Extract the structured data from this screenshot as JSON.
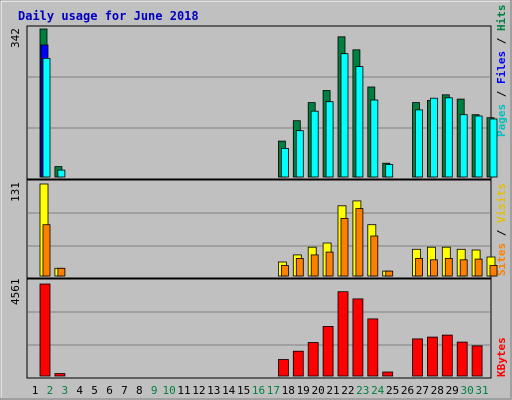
{
  "chart_data": {
    "type": "bar",
    "title": "Daily usage for June 2018",
    "days": [
      "1",
      "2",
      "3",
      "4",
      "5",
      "6",
      "7",
      "8",
      "9",
      "10",
      "11",
      "12",
      "13",
      "14",
      "15",
      "16",
      "17",
      "18",
      "19",
      "20",
      "21",
      "22",
      "23",
      "24",
      "25",
      "26",
      "27",
      "28",
      "29",
      "30",
      "31"
    ],
    "weekend_days": [
      "2",
      "3",
      "9",
      "10",
      "16",
      "17",
      "23",
      "24",
      "30",
      "31"
    ],
    "panels": [
      {
        "id": "hits",
        "ylabel_parts": [
          "Pages",
          "Files",
          "Hits"
        ],
        "max_label": "342",
        "ymax": 342,
        "series": [
          {
            "name": "Hits",
            "color": "#008040",
            "values": [
              342,
              24,
              0,
              0,
              0,
              0,
              0,
              0,
              0,
              0,
              0,
              0,
              0,
              0,
              0,
              0,
              83,
              130,
              172,
              200,
              324,
              294,
              208,
              32,
              0,
              172,
              177,
              190,
              180,
              144,
              137
            ]
          },
          {
            "name": "Files",
            "color": "#0000ff",
            "values": [
              305,
              0,
              0,
              0,
              0,
              0,
              0,
              0,
              0,
              0,
              0,
              0,
              0,
              0,
              0,
              0,
              0,
              0,
              0,
              0,
              0,
              0,
              0,
              0,
              0,
              0,
              0,
              0,
              0,
              0,
              0
            ]
          },
          {
            "name": "Pages",
            "color": "#00ffff",
            "values": [
              274,
              16,
              0,
              0,
              0,
              0,
              0,
              0,
              0,
              0,
              0,
              0,
              0,
              0,
              0,
              0,
              66,
              107,
              152,
              174,
              285,
              255,
              178,
              29,
              0,
              155,
              182,
              183,
              144,
              141,
              134
            ]
          }
        ]
      },
      {
        "id": "visits",
        "ylabel_parts": [
          "Sites",
          "Visits"
        ],
        "max_label": "131",
        "ymax": 131,
        "series": [
          {
            "name": "Visits",
            "color": "#ffff00",
            "values": [
              131,
              11,
              0,
              0,
              0,
              0,
              0,
              0,
              0,
              0,
              0,
              0,
              0,
              0,
              0,
              0,
              20,
              30,
              41,
              47,
              100,
              107,
              73,
              7,
              0,
              38,
              41,
              41,
              38,
              37,
              27
            ]
          },
          {
            "name": "Sites",
            "color": "#ff8000",
            "values": [
              73,
              11,
              0,
              0,
              0,
              0,
              0,
              0,
              0,
              0,
              0,
              0,
              0,
              0,
              0,
              0,
              15,
              25,
              30,
              34,
              82,
              96,
              57,
              7,
              0,
              25,
              23,
              25,
              23,
              24,
              15
            ]
          }
        ]
      },
      {
        "id": "kbytes",
        "ylabel_parts": [
          "KBytes"
        ],
        "max_label": "4561",
        "ymax": 4561,
        "series": [
          {
            "name": "KBytes",
            "color": "#ff0000",
            "values": [
              4561,
              120,
              0,
              0,
              0,
              0,
              0,
              0,
              0,
              0,
              0,
              0,
              0,
              0,
              0,
              0,
              820,
              1230,
              1660,
              2460,
              4180,
              3820,
              2830,
              200,
              0,
              1840,
              1930,
              2030,
              1680,
              1490,
              0
            ]
          }
        ]
      }
    ]
  }
}
